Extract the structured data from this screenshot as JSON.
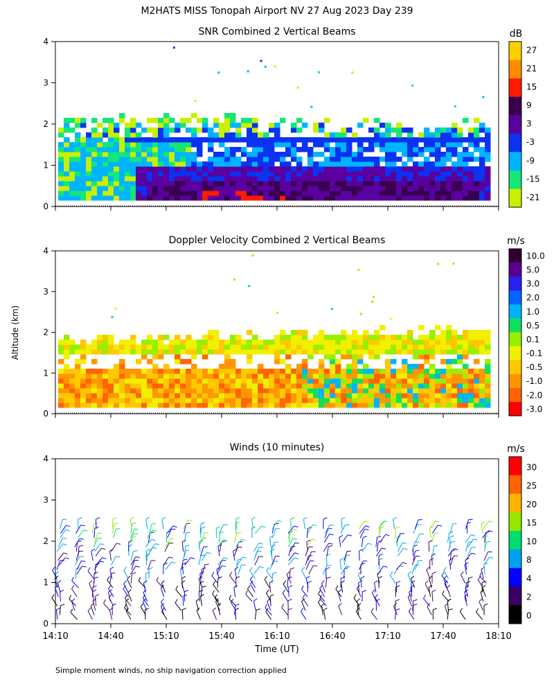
{
  "title": "M2HATS MISS Tonopah Airport NV  27 Aug 2023 Day 239",
  "ylabel": "Altitude (km)",
  "xlabel": "Time (UT)",
  "footnote": "Simple moment winds, no ship navigation correction applied",
  "time_ticks": [
    "14:10",
    "14:40",
    "15:10",
    "15:40",
    "16:10",
    "16:40",
    "17:10",
    "17:40",
    "18:10"
  ],
  "altitude_ticks": [
    "0",
    "1",
    "2",
    "3",
    "4"
  ],
  "chart_data": [
    {
      "type": "heatmap",
      "title": "SNR Combined 2 Vertical Beams",
      "xlim": [
        "14:10",
        "18:10"
      ],
      "ylim": [
        0,
        4
      ],
      "colorbar": {
        "unit": "dB",
        "ticks": [
          "27",
          "21",
          "15",
          "9",
          "3",
          "-3",
          "-9",
          "-15",
          "-21"
        ],
        "colors": [
          "#ffd000",
          "#ff8c00",
          "#ff1a00",
          "#3a0050",
          "#5a00a0",
          "#0a32f0",
          "#00b4ff",
          "#14e678",
          "#c8f000"
        ]
      }
    },
    {
      "type": "heatmap",
      "title": "Doppler Velocity Combined 2 Vertical Beams",
      "xlim": [
        "14:10",
        "18:10"
      ],
      "ylim": [
        0,
        4
      ],
      "colorbar": {
        "unit": "m/s",
        "ticks": [
          "10.0",
          "5.0",
          "3.0",
          "2.0",
          "1.0",
          "0.5",
          "0.1",
          "-0.1",
          "-0.5",
          "-1.0",
          "-2.0",
          "-3.0"
        ],
        "colors": [
          "#300030",
          "#5a0094",
          "#2a1ef0",
          "#0064ff",
          "#00b4ff",
          "#10e060",
          "#96f000",
          "#f0f000",
          "#ffc800",
          "#ff9600",
          "#ff6400",
          "#ff0000"
        ]
      }
    },
    {
      "type": "scatter",
      "title": "Winds (10 minutes)",
      "xlim": [
        "14:10",
        "18:10"
      ],
      "ylim": [
        0,
        4
      ],
      "colorbar": {
        "unit": "m/s",
        "ticks": [
          "30",
          "25",
          "20",
          "15",
          "10",
          "8",
          "4",
          "2",
          "0"
        ],
        "colors": [
          "#ff0000",
          "#ff6400",
          "#ffb400",
          "#96e600",
          "#00dc6e",
          "#00a0f0",
          "#0000ff",
          "#3c0064",
          "#000000"
        ]
      }
    }
  ]
}
